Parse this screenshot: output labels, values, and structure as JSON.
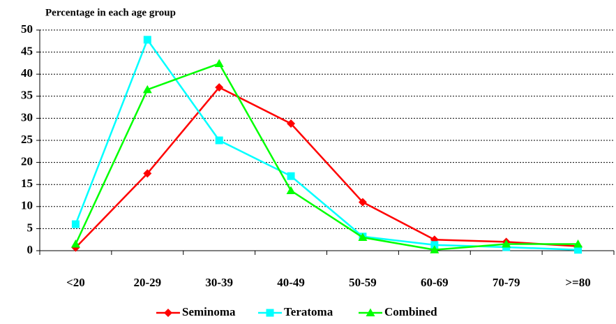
{
  "chart_data": {
    "type": "line",
    "title": "Percentage in each age group",
    "categories": [
      "<20",
      "20-29",
      "30-39",
      "40-49",
      "50-59",
      "60-69",
      "70-79",
      ">=80"
    ],
    "series": [
      {
        "name": "Seminoma",
        "color": "#ff0000",
        "marker": "diamond",
        "values": [
          0.7,
          17.5,
          37,
          28.8,
          11,
          2.5,
          2,
          1
        ]
      },
      {
        "name": "Teratoma",
        "color": "#00ffff",
        "marker": "square",
        "values": [
          6,
          47.8,
          25,
          16.9,
          3.2,
          1.3,
          0.8,
          0.2
        ]
      },
      {
        "name": "Combined",
        "color": "#00ff00",
        "marker": "triangle",
        "values": [
          1.5,
          36.5,
          42.4,
          13.6,
          3,
          0.2,
          1.5,
          1.5
        ]
      }
    ],
    "ylim": [
      0,
      50
    ],
    "yticks": [
      0,
      5,
      10,
      15,
      20,
      25,
      30,
      35,
      40,
      45,
      50
    ],
    "grid": true,
    "legend": "bottom"
  }
}
